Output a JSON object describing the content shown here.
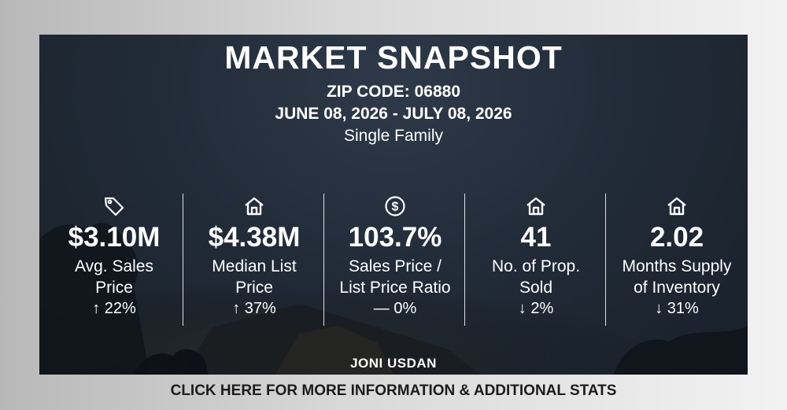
{
  "header": {
    "title": "MARKET SNAPSHOT",
    "zip": "ZIP CODE: 06880",
    "date_range": "JUNE 08, 2026 - JULY 08, 2026",
    "property_type": "Single Family"
  },
  "stats": [
    {
      "icon": "price-tag-icon",
      "value": "$3.10M",
      "label_line1": "Avg. Sales",
      "label_line2": "Price",
      "change": "↑ 22%"
    },
    {
      "icon": "house-icon",
      "value": "$4.38M",
      "label_line1": "Median List",
      "label_line2": "Price",
      "change": "↑ 37%"
    },
    {
      "icon": "dollar-circle-icon",
      "value": "103.7%",
      "label_line1": "Sales Price /",
      "label_line2": "List Price Ratio",
      "change": "— 0%"
    },
    {
      "icon": "house-icon",
      "value": "41",
      "label_line1": "No. of Prop.",
      "label_line2": "Sold",
      "change": "↓ 2%"
    },
    {
      "icon": "house-icon",
      "value": "2.02",
      "label_line1": "Months Supply",
      "label_line2": "of Inventory",
      "change": "↓ 31%"
    }
  ],
  "agent_name": "JONI USDAN",
  "cta_label": "CLICK HERE FOR MORE INFORMATION & ADDITIONAL STATS",
  "colors": {
    "card_background": "#222c39",
    "text": "#ffffff",
    "cta_text": "#1c1c1c"
  }
}
